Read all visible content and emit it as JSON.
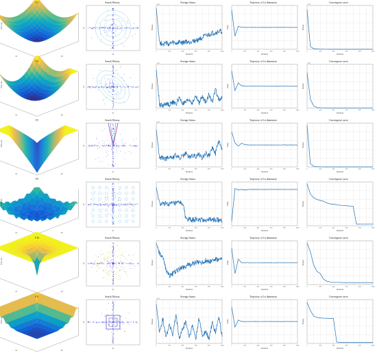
{
  "figure": {
    "rows": [
      {
        "function": "F1",
        "surface_shape": "bowl-steep",
        "search_pattern": "cross-circular",
        "panels": [
          {
            "kind": "surface",
            "title": "F1",
            "xlabel": "x1",
            "ylabel": "x2",
            "zlabel": "F(x1,x2)"
          },
          {
            "kind": "search",
            "title": "Search History",
            "xlabel": "x1",
            "ylabel": "x2"
          },
          {
            "kind": "line",
            "title": "Average fitness",
            "xlabel": "Iteration",
            "ylabel": "Fitness",
            "exponent": "×10⁴"
          },
          {
            "kind": "line",
            "title": "Trajectory of 1st dimension",
            "xlabel": "Iteration",
            "ylabel": "Value"
          },
          {
            "kind": "line",
            "title": "Convergence curve",
            "xlabel": "Iteration",
            "ylabel": "Fitness",
            "exponent": "×10⁴"
          }
        ]
      },
      {
        "function": "F2",
        "surface_shape": "bowl-tilted",
        "search_pattern": "cross-elliptical",
        "panels": [
          {
            "kind": "surface",
            "title": "F2",
            "xlabel": "x1",
            "ylabel": "x2",
            "zlabel": "F(x1,x2)"
          },
          {
            "kind": "search",
            "title": "Search History",
            "xlabel": "x1",
            "ylabel": "x2"
          },
          {
            "kind": "line",
            "title": "Average fitness",
            "xlabel": "Iteration",
            "ylabel": "Fitness",
            "exponent": "×10⁴"
          },
          {
            "kind": "line",
            "title": "Trajectory of 1st dimension",
            "xlabel": "Iteration",
            "ylabel": "Value"
          },
          {
            "kind": "line",
            "title": "Convergence curve",
            "xlabel": "Iteration",
            "ylabel": "Fitness",
            "exponent": "×10⁴"
          }
        ]
      },
      {
        "function": "F3",
        "surface_shape": "valley",
        "search_pattern": "cross-diagonal",
        "panels": [
          {
            "kind": "surface",
            "title": "F3",
            "xlabel": "x1",
            "ylabel": "x2",
            "zlabel": "F(x1,x2)"
          },
          {
            "kind": "search",
            "title": "Search History",
            "xlabel": "x1",
            "ylabel": "x2"
          },
          {
            "kind": "line",
            "title": "Average fitness",
            "xlabel": "Iteration",
            "ylabel": "Fitness",
            "exponent": "×10⁴"
          },
          {
            "kind": "line",
            "title": "Trajectory of 1st dimension",
            "xlabel": "Iteration",
            "ylabel": "Value"
          },
          {
            "kind": "line",
            "title": "Convergence curve",
            "xlabel": "Iteration",
            "ylabel": "Fitness"
          }
        ]
      },
      {
        "function": "F9",
        "surface_shape": "rastrigin",
        "search_pattern": "cross-grid",
        "panels": [
          {
            "kind": "surface",
            "title": "F9",
            "xlabel": "x1",
            "ylabel": "x2",
            "zlabel": "F(x1,x2)"
          },
          {
            "kind": "search",
            "title": "Search History",
            "xlabel": "x1",
            "ylabel": "x2"
          },
          {
            "kind": "line",
            "title": "Average fitness",
            "xlabel": "Iteration",
            "ylabel": "Fitness"
          },
          {
            "kind": "line",
            "title": "Trajectory of 1st dimension",
            "xlabel": "Iteration",
            "ylabel": "Value"
          },
          {
            "kind": "line",
            "title": "Convergence curve",
            "xlabel": "Iteration",
            "ylabel": "Fitness"
          }
        ]
      },
      {
        "function": "F10",
        "surface_shape": "spike",
        "search_pattern": "cross-halo",
        "panels": [
          {
            "kind": "surface",
            "title": "F10",
            "xlabel": "x1",
            "ylabel": "x2",
            "zlabel": "F(x1,x2)"
          },
          {
            "kind": "search",
            "title": "Search History",
            "xlabel": "x1",
            "ylabel": "x2"
          },
          {
            "kind": "line",
            "title": "Average fitness",
            "xlabel": "Iteration",
            "ylabel": "Fitness"
          },
          {
            "kind": "line",
            "title": "Trajectory of 1st dimension",
            "xlabel": "Iteration",
            "ylabel": "Value"
          },
          {
            "kind": "line",
            "title": "Convergence curve",
            "xlabel": "Iteration",
            "ylabel": "Fitness"
          }
        ]
      },
      {
        "function": "F11",
        "surface_shape": "bowl-flat",
        "search_pattern": "cross-box",
        "panels": [
          {
            "kind": "surface",
            "title": "F11",
            "xlabel": "x1",
            "ylabel": "x2",
            "zlabel": "F(x1,x2)"
          },
          {
            "kind": "search",
            "title": "Search History",
            "xlabel": "x1",
            "ylabel": "x2"
          },
          {
            "kind": "line",
            "title": "Average fitness",
            "xlabel": "Iteration",
            "ylabel": "Fitness",
            "exponent": "×10⁴"
          },
          {
            "kind": "line",
            "title": "Trajectory of 1st dimension",
            "xlabel": "Iteration",
            "ylabel": "Value"
          },
          {
            "kind": "line",
            "title": "Convergence curve",
            "xlabel": "Iteration",
            "ylabel": "Fitness"
          }
        ]
      }
    ],
    "x_ticks": [
      "0",
      "100",
      "200",
      "300",
      "400",
      "500",
      "600",
      "700",
      "800",
      "900",
      "1000"
    ]
  },
  "chart_data": {
    "type": "line",
    "title": "",
    "x_unit": "Iteration",
    "x_range": [
      0,
      1000
    ],
    "x_samples": [
      0,
      50,
      100,
      150,
      200,
      250,
      300,
      350,
      400,
      450,
      500,
      550,
      600,
      650,
      700,
      750,
      800,
      850,
      900,
      950,
      1000
    ],
    "colors": {
      "line": "#1f6fb4",
      "search_points": "#1818d0",
      "contour": "#7cc7d9"
    },
    "series": [
      {
        "name": "F1 Average fitness",
        "ylim": [
          0,
          8
        ],
        "values": [
          7.5,
          1.2,
          1.0,
          1.1,
          0.9,
          1.2,
          1.0,
          1.3,
          1.1,
          1.4,
          1.2,
          1.6,
          1.5,
          1.9,
          2.1,
          2.4,
          2.6,
          2.9,
          3.0,
          3.2,
          3.3
        ]
      },
      {
        "name": "F1 Trajectory of 1st dimension",
        "ylim": [
          -100,
          100
        ],
        "values": [
          80,
          -40,
          5,
          0,
          0,
          0,
          0,
          0,
          0,
          0,
          0,
          0,
          0,
          0,
          0,
          0,
          0,
          0,
          0,
          0,
          0
        ]
      },
      {
        "name": "F1 Convergence curve",
        "ylim": [
          0,
          8
        ],
        "values": [
          7.2,
          0.5,
          0.1,
          0.05,
          0.02,
          0.01,
          0.01,
          0,
          0,
          0,
          0,
          0,
          0,
          0,
          0,
          0,
          0,
          0,
          0,
          0,
          0
        ]
      },
      {
        "name": "F2 Average fitness",
        "ylim": [
          0,
          8
        ],
        "values": [
          7.0,
          0.6,
          0.5,
          0.8,
          0.6,
          1.1,
          0.7,
          1.9,
          0.8,
          1.0,
          1.6,
          0.9,
          2.2,
          1.0,
          2.0,
          1.2,
          2.5,
          1.1,
          3.4,
          1.6,
          1.8
        ]
      },
      {
        "name": "F2 Trajectory of 1st dimension",
        "ylim": [
          -100,
          100
        ],
        "values": [
          70,
          -20,
          15,
          2,
          0,
          0,
          0,
          0,
          0,
          0,
          0,
          0,
          0,
          0,
          0,
          0,
          0,
          0,
          0,
          0,
          0
        ]
      },
      {
        "name": "F2 Convergence curve",
        "ylim": [
          0,
          8
        ],
        "values": [
          6.5,
          1.6,
          0.4,
          0.1,
          0.03,
          0.01,
          0,
          0,
          0,
          0,
          0,
          0,
          0,
          0,
          0,
          0,
          0,
          0,
          0,
          0,
          0
        ]
      },
      {
        "name": "F3 Average fitness",
        "ylim": [
          0,
          8
        ],
        "values": [
          6.8,
          1.5,
          1.8,
          1.4,
          2.0,
          1.7,
          2.2,
          1.6,
          1.9,
          2.4,
          1.8,
          2.1,
          1.9,
          2.3,
          1.7,
          2.6,
          2.0,
          3.5,
          2.4,
          4.8,
          3.0
        ]
      },
      {
        "name": "F3 Trajectory of 1st dimension",
        "ylim": [
          -100,
          100
        ],
        "values": [
          60,
          10,
          -5,
          8,
          2,
          0,
          0,
          0,
          0,
          0,
          0,
          0,
          0,
          0,
          0,
          0,
          0,
          0,
          0,
          0,
          0
        ]
      },
      {
        "name": "F3 Convergence curve",
        "ylim": [
          0,
          8000
        ],
        "values": [
          7600,
          600,
          120,
          40,
          10,
          5,
          2,
          0,
          0,
          0,
          0,
          0,
          0,
          0,
          0,
          0,
          0,
          0,
          0,
          0,
          0
        ]
      },
      {
        "name": "F9 Average fitness",
        "ylim": [
          0,
          800
        ],
        "values": [
          700,
          400,
          390,
          410,
          395,
          405,
          400,
          420,
          410,
          130,
          110,
          105,
          115,
          100,
          110,
          105,
          112,
          108,
          104,
          110,
          106
        ]
      },
      {
        "name": "F9 Trajectory of 1st dimension",
        "ylim": [
          -5,
          5
        ],
        "values": [
          -4,
          3.5,
          3.2,
          3.3,
          3.2,
          3.3,
          3.3,
          3.3,
          3.3,
          3.3,
          3.3,
          3.3,
          3.3,
          3.3,
          3.3,
          3.3,
          3.3,
          3.3,
          3.3,
          3.3,
          3.3
        ]
      },
      {
        "name": "F9 Convergence curve",
        "ylim": [
          0,
          500
        ],
        "values": [
          480,
          360,
          320,
          300,
          290,
          280,
          260,
          250,
          245,
          240,
          235,
          230,
          228,
          225,
          222,
          20,
          18,
          18,
          18,
          18,
          18
        ]
      },
      {
        "name": "F10 Average fitness",
        "ylim": [
          0,
          20
        ],
        "values": [
          19,
          14,
          12,
          7,
          4,
          5,
          6,
          7,
          8,
          8.5,
          9,
          9.5,
          10,
          10.5,
          10,
          11,
          10.5,
          11,
          11.5,
          11,
          11.5
        ]
      },
      {
        "name": "F10 Trajectory of 1st dimension",
        "ylim": [
          -30,
          30
        ],
        "values": [
          20,
          -15,
          5,
          0,
          0,
          0,
          0,
          0,
          0,
          0,
          0,
          0,
          0,
          0,
          0,
          0,
          0,
          0,
          0,
          0,
          0
        ]
      },
      {
        "name": "F10 Convergence curve",
        "ylim": [
          0,
          20
        ],
        "values": [
          19,
          15,
          9,
          6,
          5,
          2.5,
          1.5,
          1.2,
          1,
          1,
          1,
          0.9,
          0.9,
          0.9,
          0.9,
          0.9,
          0.9,
          0.9,
          0.9,
          0.9,
          0.9
        ]
      },
      {
        "name": "F11 Average fitness",
        "ylim": [
          0,
          8
        ],
        "values": [
          7.2,
          2.0,
          4.5,
          1.2,
          3.6,
          1.5,
          5.2,
          0.8,
          2.6,
          4.0,
          1.1,
          3.2,
          0.9,
          4.6,
          1.4,
          2.2,
          0.7,
          3.8,
          1.9,
          4.9,
          1.3
        ]
      },
      {
        "name": "F11 Trajectory of 1st dimension",
        "ylim": [
          -600,
          600
        ],
        "values": [
          400,
          -150,
          40,
          0,
          0,
          0,
          0,
          0,
          0,
          0,
          0,
          0,
          0,
          0,
          0,
          0,
          0,
          0,
          0,
          0,
          0
        ]
      },
      {
        "name": "F11 Convergence curve",
        "ylim": [
          0,
          160
        ],
        "values": [
          150,
          120,
          100,
          95,
          93,
          92,
          92,
          91,
          91,
          5,
          4,
          4,
          4,
          4,
          3.5,
          3.5,
          3.5,
          3.5,
          3.5,
          3.5,
          3.5
        ]
      }
    ]
  }
}
